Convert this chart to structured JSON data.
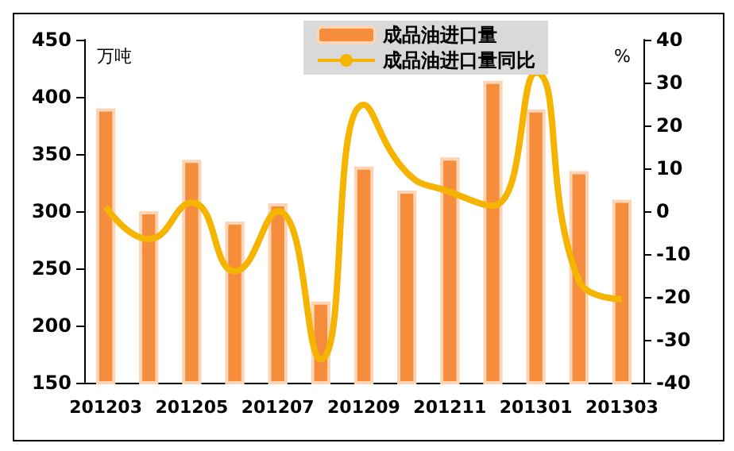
{
  "chart_data": {
    "type": "bar",
    "categories": [
      "201203",
      null,
      "201205",
      null,
      "201207",
      null,
      "201209",
      null,
      "201211",
      null,
      "201301",
      null,
      "201303"
    ],
    "series": [
      {
        "name": "成品油进口量",
        "color": "#f68d3d",
        "values": [
          390,
          300,
          345,
          291,
          307,
          221,
          339,
          318,
          347,
          414,
          389,
          335,
          310
        ]
      },
      {
        "name": "成品油进口量同比",
        "type": "line",
        "axis": "y2",
        "color": "#f5b400",
        "values": [
          1,
          -6.5,
          2,
          -14,
          0,
          -34.5,
          24.8,
          9,
          4.5,
          1.3,
          32.3,
          -16.2,
          -20.5
        ]
      }
    ],
    "ylabel": "万吨",
    "y2label": "%",
    "ylim": [
      150,
      450
    ],
    "yticks": [
      150,
      200,
      250,
      300,
      350,
      400,
      450
    ],
    "y2lim": [
      -40,
      40
    ],
    "y2ticks": [
      -40,
      -30,
      -20,
      -10,
      0,
      10,
      20,
      30,
      40
    ],
    "legend": "top right",
    "grid": false,
    "marker": "none"
  }
}
